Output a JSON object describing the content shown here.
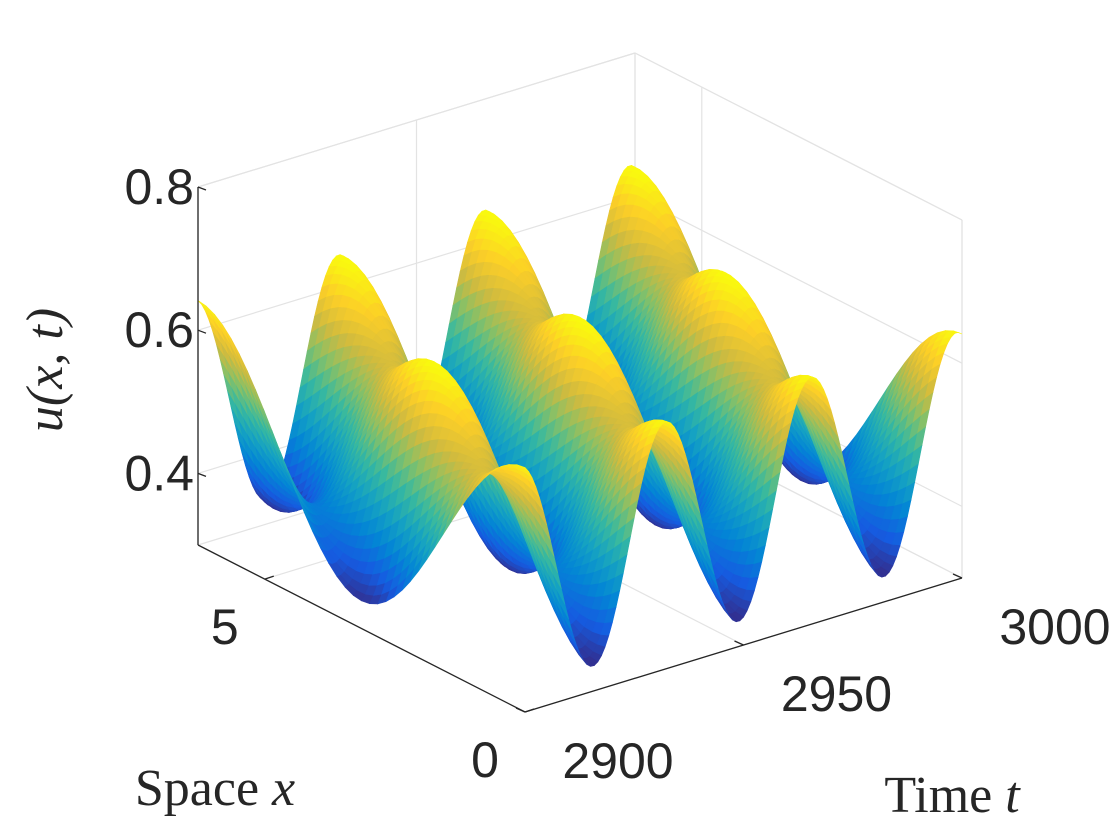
{
  "chart_data": {
    "type": "surface",
    "title": "",
    "xlabel": {
      "text": "Space ",
      "var": "x"
    },
    "ylabel": {
      "text": "Time ",
      "var": "t"
    },
    "zlabel": {
      "text": "u(x, t)"
    },
    "xlim": [
      0,
      6.283
    ],
    "ylim": [
      2900,
      3000
    ],
    "zlim": [
      0.3,
      0.8
    ],
    "xticks": [
      {
        "value": 0,
        "label": "0"
      },
      {
        "value": 5,
        "label": "5"
      }
    ],
    "yticks": [
      {
        "value": 2900,
        "label": "2900"
      },
      {
        "value": 2950,
        "label": "2950"
      },
      {
        "value": 3000,
        "label": "3000"
      }
    ],
    "zticks": [
      {
        "value": 0.4,
        "label": "0.4"
      },
      {
        "value": 0.6,
        "label": "0.6"
      },
      {
        "value": 0.8,
        "label": "0.8"
      }
    ],
    "grid": true,
    "colormap": "parula",
    "surface_model": {
      "mean": 0.49,
      "travel_amplitude": 0.09,
      "standing_amplitude": 0.07,
      "period_t": 33.3,
      "x_wavenumber": 1.0,
      "phase": 0.5
    }
  }
}
